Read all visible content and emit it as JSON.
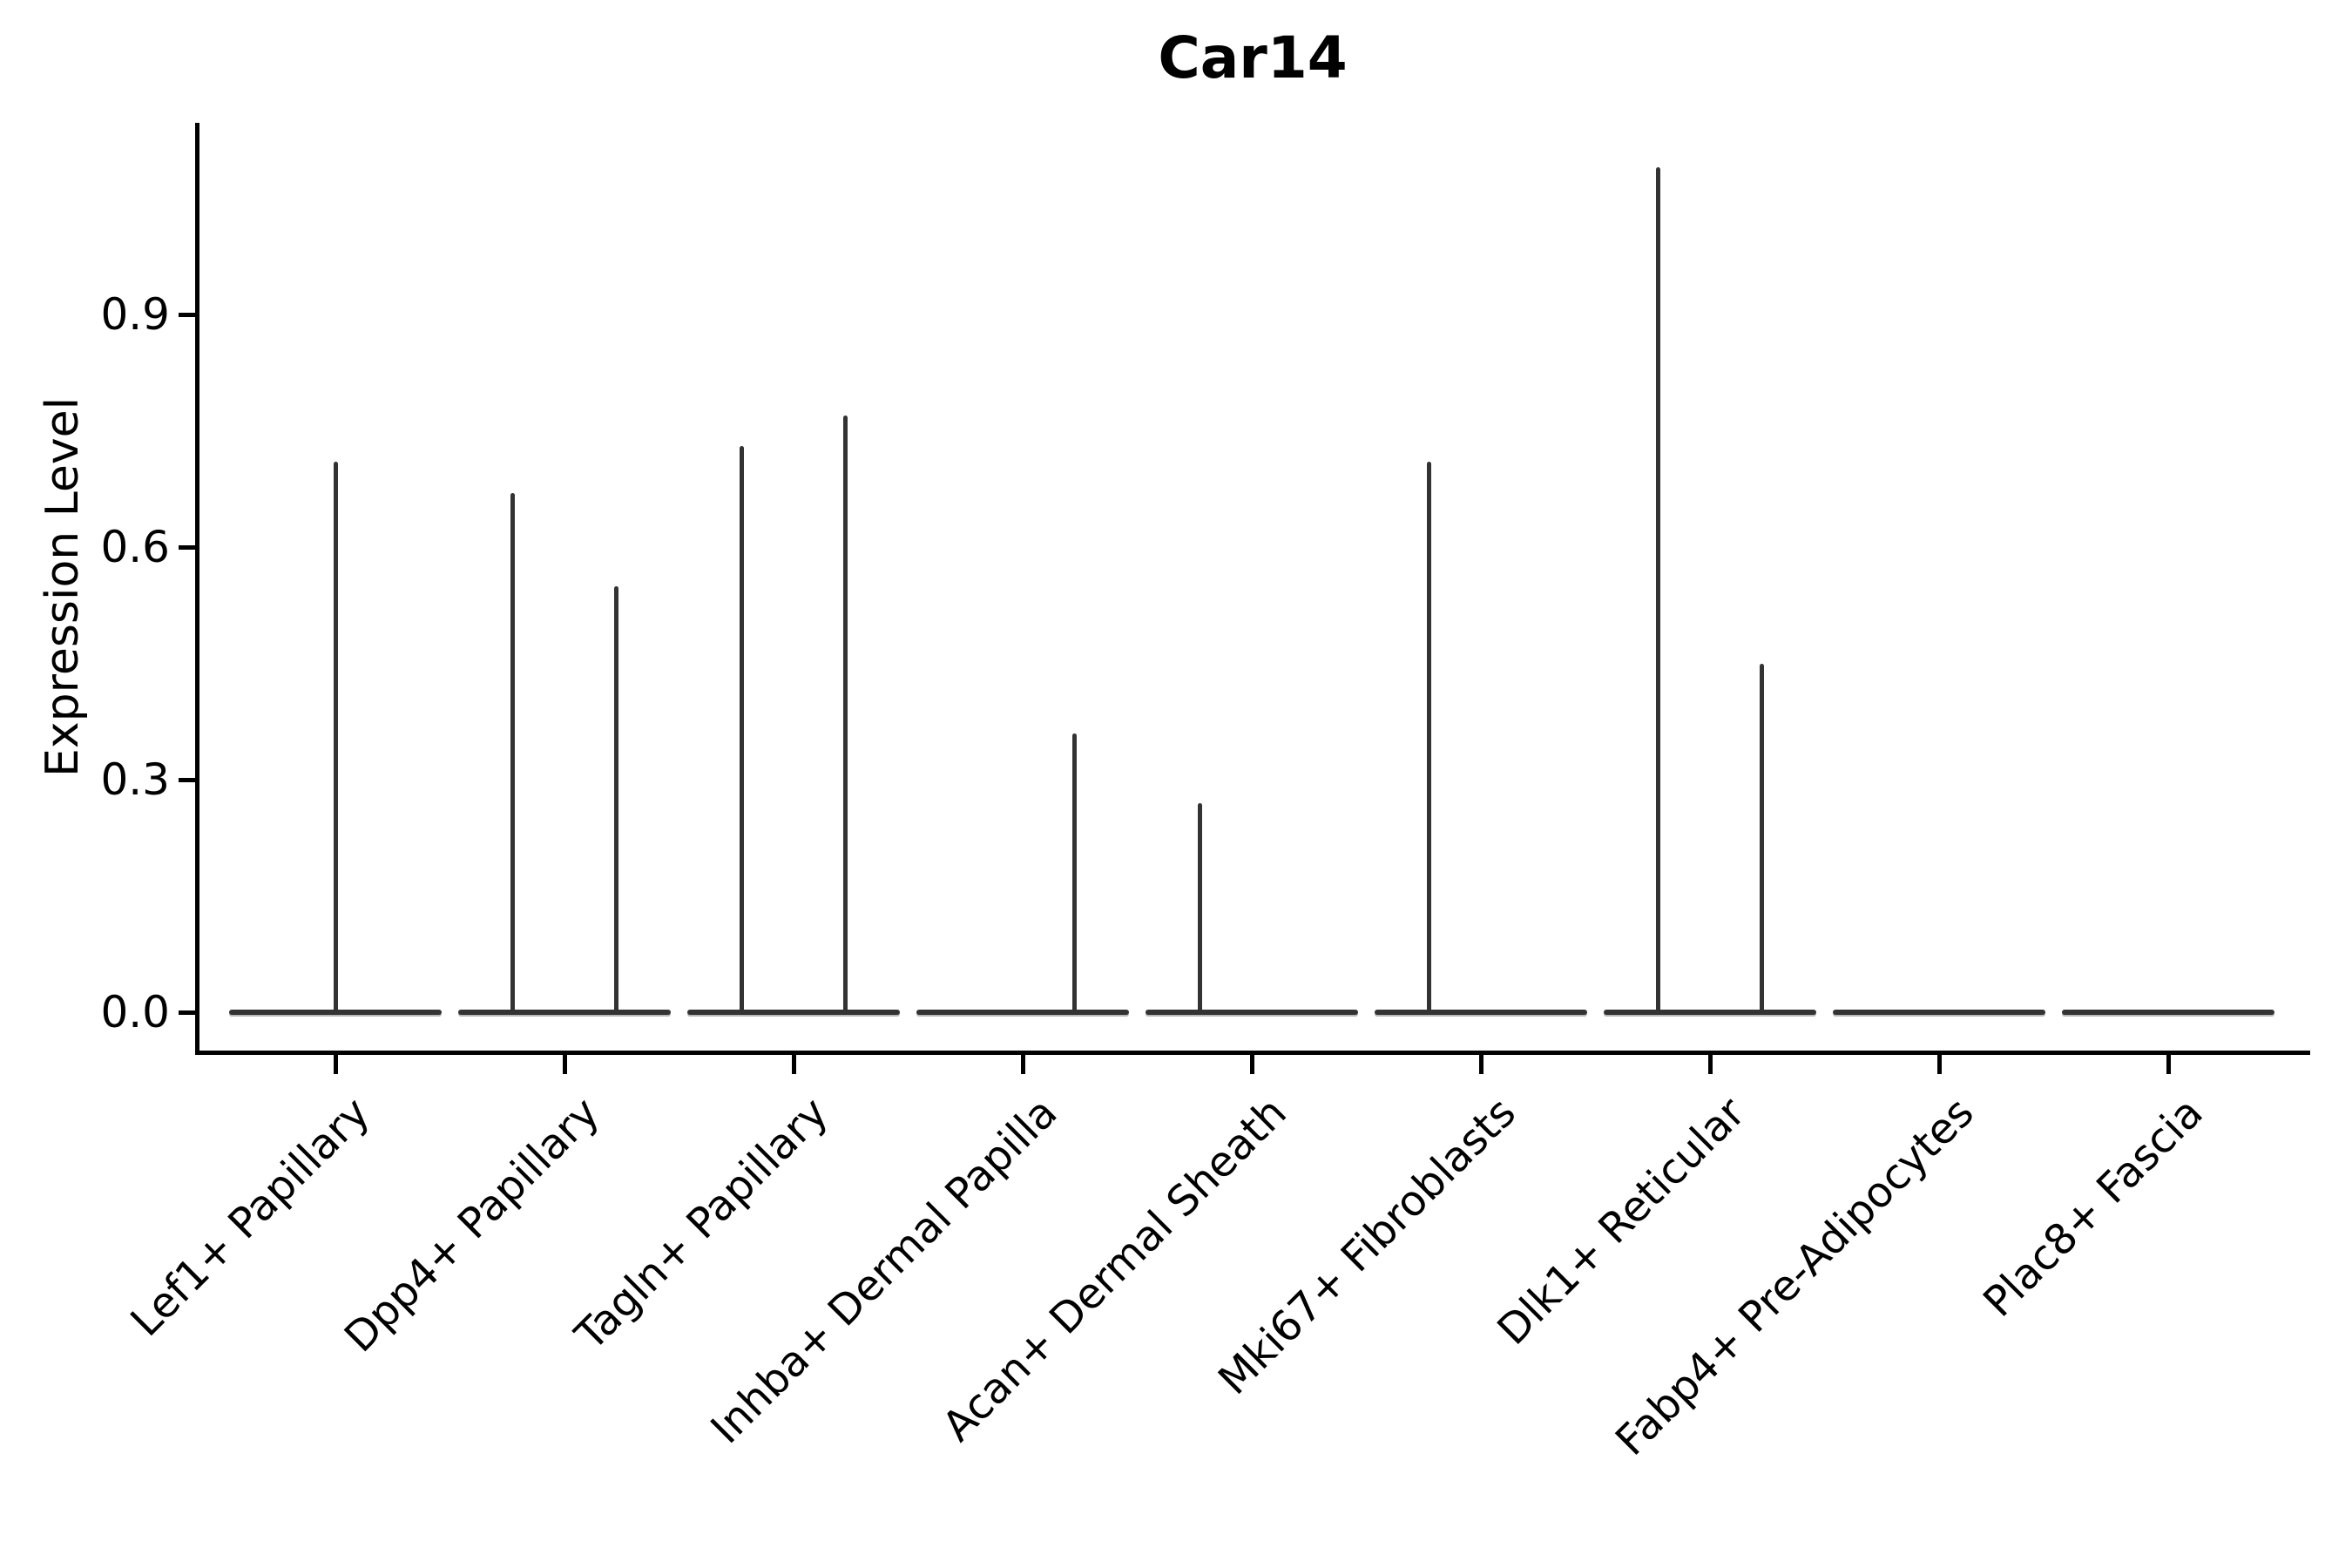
{
  "title": "Car14",
  "ylabel": "Expression Level",
  "colors": {
    "violin": "#333333",
    "axis": "#000000",
    "background": "#ffffff"
  },
  "chart_data": {
    "type": "violin",
    "title": "Car14",
    "xlabel": "",
    "ylabel": "Expression Level",
    "categories": [
      "Lef1+ Papillary",
      "Dpp4+ Papillary",
      "Tagln+ Papillary",
      "Inhba+ Dermal Papilla",
      "Acan+ Dermal Sheath",
      "Mki67+ Fibroblasts",
      "Dlk1+ Reticular",
      "Fabp4+ Pre-Adipocytes",
      "Plac8+ Fascia"
    ],
    "yticks": [
      "0.0",
      "0.3",
      "0.6",
      "0.9"
    ],
    "ytick_values": [
      0.0,
      0.3,
      0.6,
      0.9
    ],
    "ylim": [
      -0.052,
      1.147
    ],
    "grid": false,
    "legend": "none",
    "baseline_halfwidth": 0.465,
    "series": [
      {
        "category": "Lef1+ Papillary",
        "spikes": [
          {
            "pos": 0.0,
            "value": 0.71
          }
        ]
      },
      {
        "category": "Dpp4+ Papillary",
        "spikes": [
          {
            "pos": -0.225,
            "value": 0.67
          },
          {
            "pos": 0.225,
            "value": 0.55
          }
        ]
      },
      {
        "category": "Tagln+ Papillary",
        "spikes": [
          {
            "pos": -0.225,
            "value": 0.73
          },
          {
            "pos": 0.225,
            "value": 0.77
          }
        ]
      },
      {
        "category": "Inhba+ Dermal Papilla",
        "spikes": [
          {
            "pos": 0.225,
            "value": 0.36
          }
        ]
      },
      {
        "category": "Acan+ Dermal Sheath",
        "spikes": [
          {
            "pos": -0.225,
            "value": 0.27
          }
        ]
      },
      {
        "category": "Mki67+ Fibroblasts",
        "spikes": [
          {
            "pos": -0.225,
            "value": 0.71
          }
        ]
      },
      {
        "category": "Dlk1+ Reticular",
        "spikes": [
          {
            "pos": -0.225,
            "value": 1.09
          },
          {
            "pos": 0.225,
            "value": 0.45
          }
        ]
      },
      {
        "category": "Fabp4+ Pre-Adipocytes",
        "spikes": []
      },
      {
        "category": "Plac8+ Fascia",
        "spikes": []
      }
    ]
  }
}
